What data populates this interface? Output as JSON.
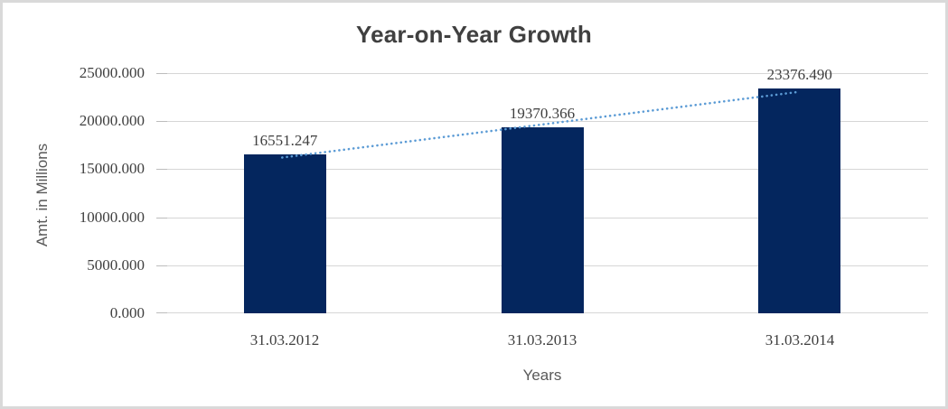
{
  "chart_data": {
    "type": "bar",
    "title": "Year-on-Year Growth",
    "xlabel": "Years",
    "ylabel": "Amt. in Millions",
    "categories": [
      "31.03.2012",
      "31.03.2013",
      "31.03.2014"
    ],
    "values": [
      16551.247,
      19370.366,
      23376.49
    ],
    "data_labels": [
      "16551.247",
      "19370.366",
      "23376.490"
    ],
    "y_ticks": [
      "25000.000",
      "20000.000",
      "15000.000",
      "10000.000",
      "5000.000",
      "0.000"
    ],
    "ylim": [
      0,
      25000
    ],
    "ytick_step": 5000,
    "grid": true,
    "legend": false,
    "trendline": {
      "type": "linear",
      "style": "dotted",
      "color": "#5b9bd5",
      "span": "first-to-last-category"
    }
  },
  "colors": {
    "bar": "#04265e",
    "trendline": "#5b9bd5",
    "gridline": "#d6d6d6",
    "title_text": "#404040",
    "tick_text": "#3f3f3f",
    "axis_title_text": "#595959",
    "frame_border": "#d9d9d9",
    "background": "#ffffff"
  }
}
